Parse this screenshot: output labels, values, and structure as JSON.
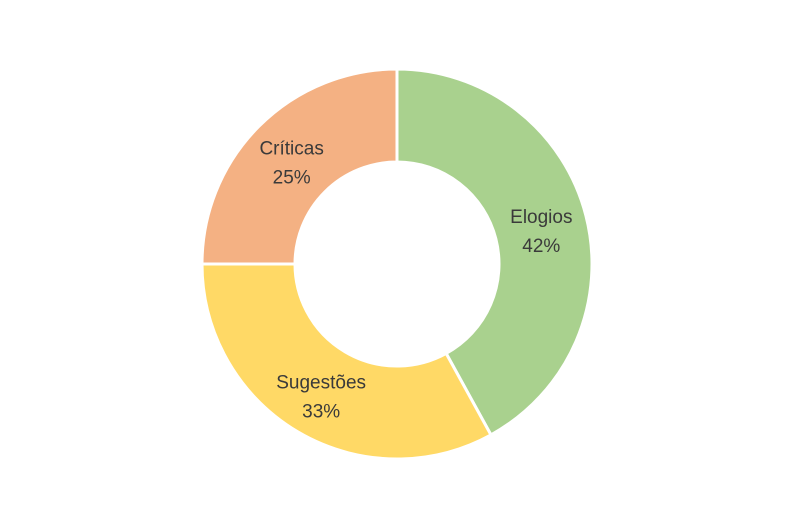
{
  "chart_data": {
    "type": "pie",
    "variant": "donut",
    "title": "",
    "start_angle_deg": 0,
    "direction": "clockwise",
    "slices": [
      {
        "label": "Elogios",
        "value": 42,
        "value_label": "42%",
        "color": "#a9d18e"
      },
      {
        "label": "Sugestões",
        "value": 33,
        "value_label": "33%",
        "color": "#ffd966"
      },
      {
        "label": "Críticas",
        "value": 25,
        "value_label": "25%",
        "color": "#f4b183"
      }
    ],
    "separator_color": "#ffffff",
    "legend": "none"
  }
}
